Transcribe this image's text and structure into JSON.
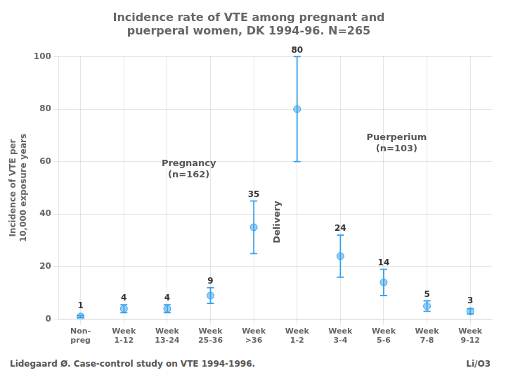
{
  "chart_data": {
    "type": "line",
    "title": "Incidence rate of VTE among pregnant and\npuerperal women, DK 1994-96. N=265",
    "ylabel": "Incidence of VTE per\n10,000 exposure years",
    "categories": [
      "Non-\npreg",
      "Week\n1-12",
      "Week\n13-24",
      "Week\n25-36",
      "Week\n>36",
      "Week\n1-2",
      "Week\n3-4",
      "Week\n5-6",
      "Week\n7-8",
      "Week\n9-12"
    ],
    "values": [
      1,
      4,
      4,
      9,
      35,
      80,
      24,
      14,
      5,
      3
    ],
    "error_lower": [
      0.4,
      1.5,
      1.5,
      3,
      10,
      20,
      8,
      5,
      2,
      1
    ],
    "error_upper": [
      0.4,
      1.5,
      1.5,
      3,
      10,
      20,
      8,
      5,
      2,
      1
    ],
    "ylim": [
      0,
      100
    ],
    "yticks": [
      0,
      20,
      40,
      60,
      80,
      100
    ],
    "grid": true,
    "data_labels": true,
    "marker": "circle",
    "line_style": "none",
    "annotations": [
      "Pregnancy\n(n=162)",
      "Puerperium\n(n=103)",
      "Delivery"
    ],
    "footer": [
      "Lidegaard Ø. Case-control study on VTE 1994-1996.",
      "Li/O3"
    ]
  }
}
